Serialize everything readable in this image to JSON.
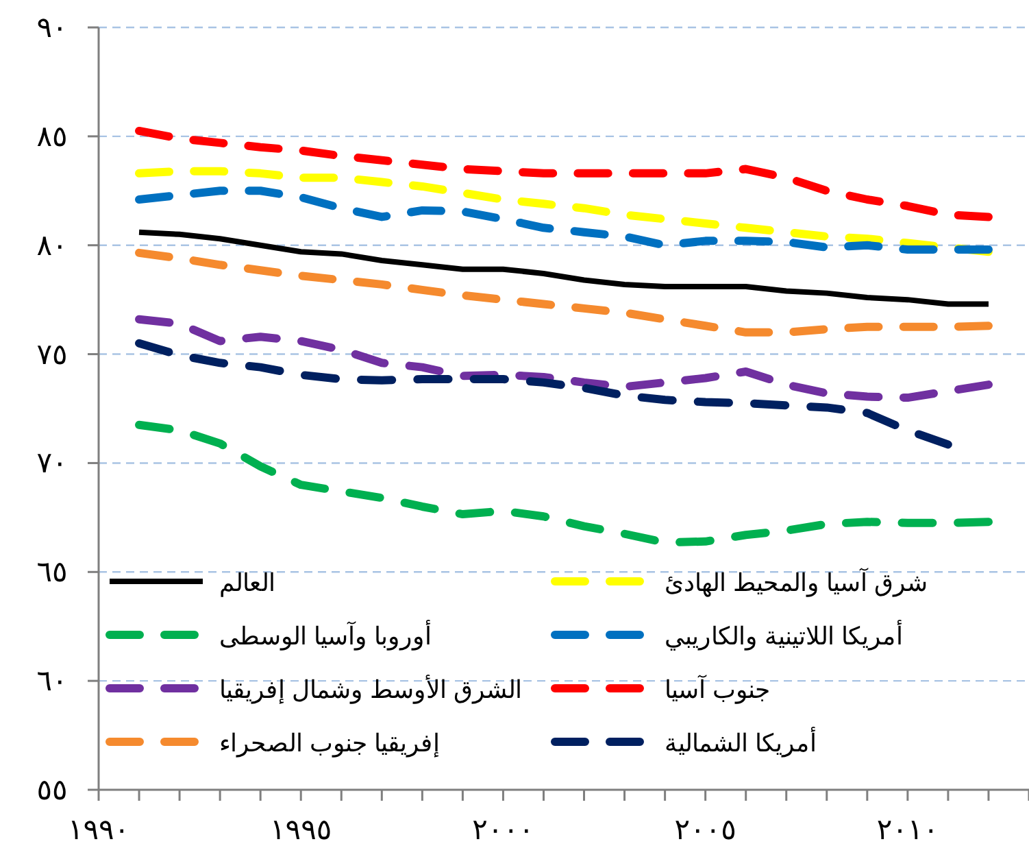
{
  "chart_data": {
    "type": "line",
    "x": [
      1991,
      1992,
      1993,
      1994,
      1995,
      1996,
      1997,
      1998,
      1999,
      2000,
      2001,
      2002,
      2003,
      2004,
      2005,
      2006,
      2007,
      2008,
      2009,
      2010,
      2011,
      2012
    ],
    "xlim": [
      1990,
      2013
    ],
    "xticks": [
      {
        "value": 1990,
        "label": "١٩٩٠"
      },
      {
        "value": 1991,
        "label": null
      },
      {
        "value": 1992,
        "label": null
      },
      {
        "value": 1993,
        "label": null
      },
      {
        "value": 1994,
        "label": null
      },
      {
        "value": 1995,
        "label": "١٩٩٥"
      },
      {
        "value": 1996,
        "label": null
      },
      {
        "value": 1997,
        "label": null
      },
      {
        "value": 1998,
        "label": null
      },
      {
        "value": 1999,
        "label": null
      },
      {
        "value": 2000,
        "label": "٢٠٠٠"
      },
      {
        "value": 2001,
        "label": null
      },
      {
        "value": 2002,
        "label": null
      },
      {
        "value": 2003,
        "label": null
      },
      {
        "value": 2004,
        "label": null
      },
      {
        "value": 2005,
        "label": "٢٠٠٥"
      },
      {
        "value": 2006,
        "label": null
      },
      {
        "value": 2007,
        "label": null
      },
      {
        "value": 2008,
        "label": null
      },
      {
        "value": 2009,
        "label": null
      },
      {
        "value": 2010,
        "label": "٢٠١٠"
      },
      {
        "value": 2011,
        "label": null
      },
      {
        "value": 2012,
        "label": null
      },
      {
        "value": 2013,
        "label": null
      }
    ],
    "ylim": [
      55,
      90
    ],
    "yticks": [
      {
        "value": 55,
        "label": "٥٥"
      },
      {
        "value": 60,
        "label": "٦٠"
      },
      {
        "value": 65,
        "label": "٦٥"
      },
      {
        "value": 70,
        "label": "٧٠"
      },
      {
        "value": 75,
        "label": "٧٥"
      },
      {
        "value": 80,
        "label": "٨٠"
      },
      {
        "value": 85,
        "label": "٨٥"
      },
      {
        "value": 90,
        "label": "٩٠"
      }
    ],
    "grid": "y",
    "legend": "bottom",
    "series": [
      {
        "name": "العالم",
        "color": "#000000",
        "line_style": "solid",
        "values": [
          80.6,
          80.5,
          80.3,
          80.0,
          79.7,
          79.6,
          79.3,
          79.1,
          78.9,
          78.9,
          78.7,
          78.4,
          78.2,
          78.1,
          78.1,
          78.1,
          77.9,
          77.8,
          77.6,
          77.5,
          77.3,
          77.3
        ]
      },
      {
        "name": "شرق آسيا والمحيط الهادئ",
        "color": "#ffff00",
        "line_style": "dashed",
        "values": [
          83.3,
          83.4,
          83.4,
          83.3,
          83.1,
          83.1,
          82.9,
          82.7,
          82.4,
          82.1,
          81.9,
          81.7,
          81.4,
          81.2,
          81.0,
          80.8,
          80.6,
          80.4,
          80.3,
          80.1,
          79.9,
          79.7
        ]
      },
      {
        "name": "أوروبا وآسيا الوسطى",
        "color": "#00b050",
        "line_style": "dashed",
        "values": [
          71.75,
          71.5,
          70.9,
          69.85,
          69.0,
          68.7,
          68.4,
          68.0,
          67.65,
          67.8,
          67.55,
          67.1,
          66.75,
          66.35,
          66.4,
          66.7,
          66.9,
          67.2,
          67.3,
          67.25,
          67.25,
          67.3
        ]
      },
      {
        "name": "أمريكا اللاتينية والكاريبي",
        "color": "#0070c0",
        "line_style": "dashed",
        "values": [
          82.1,
          82.3,
          82.5,
          82.5,
          82.2,
          81.7,
          81.3,
          81.6,
          81.55,
          81.2,
          80.8,
          80.6,
          80.4,
          80.0,
          80.2,
          80.2,
          80.15,
          79.9,
          80.0,
          79.8,
          79.8,
          79.8
        ]
      },
      {
        "name": "الشرق الأوسط وشمال إفريقيا",
        "color": "#7030a0",
        "line_style": "dashed",
        "values": [
          76.6,
          76.4,
          75.6,
          75.8,
          75.6,
          75.2,
          74.6,
          74.4,
          74.0,
          74.05,
          73.95,
          73.7,
          73.5,
          73.7,
          73.9,
          74.2,
          73.6,
          73.2,
          73.05,
          73.0,
          73.3,
          73.6
        ]
      },
      {
        "name": "جنوب آسيا",
        "color": "#ff0000",
        "line_style": "dashed",
        "values": [
          85.25,
          84.9,
          84.7,
          84.5,
          84.35,
          84.1,
          83.9,
          83.7,
          83.5,
          83.4,
          83.3,
          83.3,
          83.3,
          83.3,
          83.3,
          83.5,
          83.1,
          82.5,
          82.1,
          81.8,
          81.4,
          81.3
        ]
      },
      {
        "name": "إفريقيا جنوب الصحراء",
        "color": "#f58a2e",
        "line_style": "dashed",
        "values": [
          79.65,
          79.4,
          79.1,
          78.85,
          78.6,
          78.4,
          78.2,
          77.95,
          77.7,
          77.5,
          77.3,
          77.1,
          76.9,
          76.6,
          76.3,
          76.0,
          76.0,
          76.15,
          76.25,
          76.25,
          76.25,
          76.3
        ]
      },
      {
        "name": "أمريكا الشمالية",
        "color": "#002060",
        "line_style": "dashed",
        "values": [
          75.5,
          74.95,
          74.6,
          74.4,
          74.05,
          73.85,
          73.8,
          73.85,
          73.85,
          73.85,
          73.7,
          73.45,
          73.1,
          72.9,
          72.8,
          72.75,
          72.65,
          72.55,
          72.3,
          71.5,
          70.85,
          null
        ]
      }
    ]
  }
}
